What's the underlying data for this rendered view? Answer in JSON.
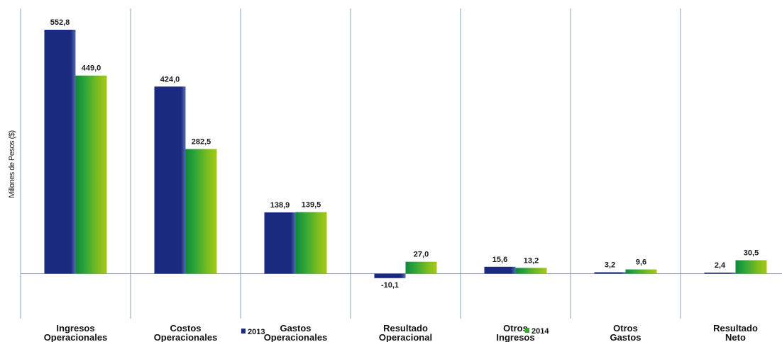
{
  "chart_data": {
    "type": "bar",
    "ylabel": "Millones de Pesos ($)",
    "categories": [
      [
        "Ingresos",
        "Operacionales"
      ],
      [
        "Costos",
        "Operacionales"
      ],
      [
        "Gastos",
        "Operacionales"
      ],
      [
        "Resultado",
        "Operacional"
      ],
      [
        "Otros",
        "Ingresos"
      ],
      [
        "Otros",
        "Gastos"
      ],
      [
        "Resultado",
        "Neto"
      ]
    ],
    "series": [
      {
        "name": "2013",
        "color": "#1a2a80",
        "values": [
          552.8,
          424.0,
          138.9,
          -10.1,
          15.6,
          3.2,
          2.4
        ],
        "labels": [
          "552,8",
          "424,0",
          "138,9",
          "-10,1",
          "15,6",
          "3,2",
          "2,4"
        ]
      },
      {
        "name": "2014",
        "color": "#3aa82a",
        "values": [
          449.0,
          282.5,
          139.5,
          27.0,
          13.2,
          9.6,
          30.5
        ],
        "labels": [
          "449,0",
          "282,5",
          "139,5",
          "27,0",
          "13,2",
          "9,6",
          "30,5"
        ]
      }
    ],
    "ylim": [
      -40,
      600
    ],
    "grid": false,
    "legend": "bottom"
  }
}
